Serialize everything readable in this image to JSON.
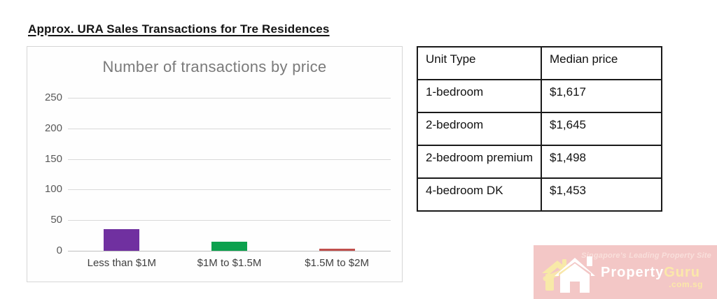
{
  "page": {
    "title": "Approx. URA Sales Transactions for Tre Residences"
  },
  "chart_data": {
    "type": "bar",
    "title": "Number of transactions by price",
    "categories": [
      "Less than $1M",
      "$1M to $1.5M",
      "$1.5M to $2M"
    ],
    "values": [
      35,
      15,
      3
    ],
    "bar_colors": [
      "#7030A0",
      "#0CA14E",
      "#C0504D"
    ],
    "xlabel": "",
    "ylabel": "",
    "ylim": [
      0,
      250
    ],
    "yticks": [
      0,
      50,
      100,
      150,
      200,
      250
    ],
    "grid": true,
    "legend": "none",
    "colors": {
      "gridline": "#d9d9d9",
      "axis_line": "#bfbfbf",
      "tick_text": "#595959",
      "category_text": "#3f3f3f",
      "title_text": "#7a7a7a"
    }
  },
  "table": {
    "headers": [
      "Unit Type",
      "Median price"
    ],
    "rows": [
      {
        "unit_type": "1-bedroom",
        "median_price": "$1,617"
      },
      {
        "unit_type": "2-bedroom",
        "median_price": "$1,645"
      },
      {
        "unit_type": "2-bedroom premium",
        "median_price": "$1,498"
      },
      {
        "unit_type": "4-bedroom DK",
        "median_price": "$1,453"
      }
    ]
  },
  "watermark": {
    "tagline": "Singapore's Leading Property Site",
    "brand_property": "Property",
    "brand_guru": "Guru",
    "domain": ".com.sg",
    "colors": {
      "background": "#f3c7c6",
      "property_text": "#ffffff",
      "guru_text": "#fbe8a9",
      "tagline_text": "#f9dfdb",
      "house_back": "#f8e9a8",
      "house_front": "#ffffff"
    }
  }
}
